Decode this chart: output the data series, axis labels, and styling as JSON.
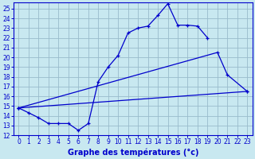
{
  "title": "Graphe des températures (°c)",
  "bg_color": "#c8e8f0",
  "grid_color": "#99bbcc",
  "line_color": "#0000cc",
  "x_hours": [
    0,
    1,
    2,
    3,
    4,
    5,
    6,
    7,
    8,
    9,
    10,
    11,
    12,
    13,
    14,
    15,
    16,
    17,
    18,
    19,
    20,
    21,
    22,
    23
  ],
  "series_peak": [
    14.8,
    14.3,
    13.8,
    13.2,
    13.2,
    13.2,
    12.5,
    13.2,
    17.5,
    19.0,
    20.2,
    22.5,
    23.0,
    23.2,
    24.3,
    25.5,
    23.3,
    23.3,
    23.2,
    22.0,
    null,
    null,
    null,
    null
  ],
  "series_mid": [
    14.8,
    null,
    null,
    null,
    null,
    null,
    null,
    null,
    null,
    null,
    null,
    null,
    null,
    null,
    null,
    null,
    null,
    null,
    null,
    null,
    20.5,
    18.2,
    null,
    16.5
  ],
  "series_low": [
    14.8,
    null,
    null,
    null,
    null,
    null,
    null,
    null,
    null,
    null,
    null,
    null,
    null,
    null,
    null,
    null,
    null,
    null,
    null,
    null,
    null,
    null,
    null,
    16.5
  ],
  "ylim_min": 12,
  "ylim_max": 25.6,
  "yticks": [
    12,
    13,
    14,
    15,
    16,
    17,
    18,
    19,
    20,
    21,
    22,
    23,
    24,
    25
  ],
  "xlabel_fontsize": 7,
  "tick_fontsize": 5.5
}
